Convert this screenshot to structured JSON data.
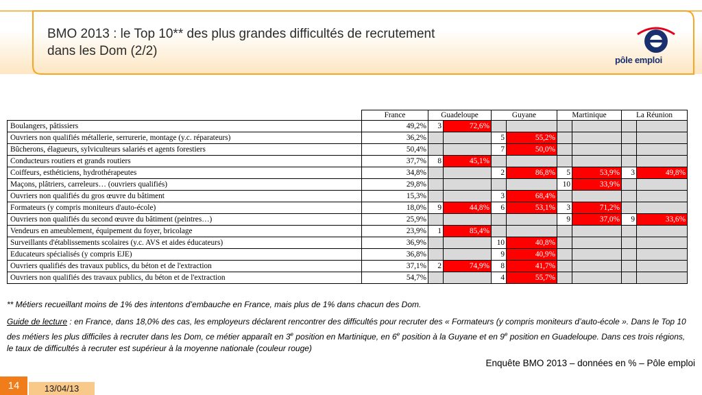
{
  "header": {
    "title_line1": "BMO 2013 : le Top 10** des plus grandes difficultés de recrutement",
    "title_line2": "dans les Dom (2/2)",
    "logo_text": "pôle emploi"
  },
  "table": {
    "columns": [
      "France",
      "Guadeloupe",
      "Guyane",
      "Martinique",
      "La Réunion"
    ],
    "rows": [
      {
        "label": "Boulangers, pâtissiers",
        "france": "49,2%",
        "cells": [
          {
            "rank": "3",
            "value": "72,6%"
          },
          {
            "rank": "",
            "value": ""
          },
          {
            "rank": "",
            "value": ""
          },
          {
            "rank": "",
            "value": ""
          }
        ]
      },
      {
        "label": "Ouvriers non qualifiés métallerie, serrurerie, montage (y.c. réparateurs)",
        "france": "36,2%",
        "cells": [
          {
            "rank": "",
            "value": ""
          },
          {
            "rank": "5",
            "value": "55,2%"
          },
          {
            "rank": "",
            "value": ""
          },
          {
            "rank": "",
            "value": ""
          }
        ]
      },
      {
        "label": "Bûcherons, élagueurs, sylviculteurs salariés et agents forestiers",
        "france": "50,4%",
        "cells": [
          {
            "rank": "",
            "value": ""
          },
          {
            "rank": "7",
            "value": "50,0%"
          },
          {
            "rank": "",
            "value": ""
          },
          {
            "rank": "",
            "value": ""
          }
        ]
      },
      {
        "label": "Conducteurs routiers et grands routiers",
        "france": "37,7%",
        "cells": [
          {
            "rank": "8",
            "value": "45,1%"
          },
          {
            "rank": "",
            "value": ""
          },
          {
            "rank": "",
            "value": ""
          },
          {
            "rank": "",
            "value": ""
          }
        ]
      },
      {
        "label": "Coiffeurs, esthéticiens, hydrothérapeutes",
        "france": "34,8%",
        "cells": [
          {
            "rank": "",
            "value": ""
          },
          {
            "rank": "2",
            "value": "86,8%"
          },
          {
            "rank": "5",
            "value": "53,9%"
          },
          {
            "rank": "3",
            "value": "49,8%"
          }
        ]
      },
      {
        "label": "Maçons, plâtriers, carreleurs… (ouvriers qualifiés)",
        "france": "29,8%",
        "cells": [
          {
            "rank": "",
            "value": ""
          },
          {
            "rank": "",
            "value": ""
          },
          {
            "rank": "10",
            "value": "33,9%"
          },
          {
            "rank": "",
            "value": ""
          }
        ]
      },
      {
        "label": "Ouvriers non qualifiés du gros œuvre du bâtiment",
        "france": "15,3%",
        "cells": [
          {
            "rank": "",
            "value": ""
          },
          {
            "rank": "3",
            "value": "68,4%"
          },
          {
            "rank": "",
            "value": ""
          },
          {
            "rank": "",
            "value": ""
          }
        ]
      },
      {
        "label": "Formateurs (y compris moniteurs d'auto-école)",
        "france": "18,0%",
        "cells": [
          {
            "rank": "9",
            "value": "44,8%"
          },
          {
            "rank": "6",
            "value": "53,1%"
          },
          {
            "rank": "3",
            "value": "71,2%"
          },
          {
            "rank": "",
            "value": ""
          }
        ]
      },
      {
        "label": "Ouvriers non qualifiés du second œuvre du bâtiment (peintres…)",
        "france": "25,9%",
        "cells": [
          {
            "rank": "",
            "value": ""
          },
          {
            "rank": "",
            "value": ""
          },
          {
            "rank": "9",
            "value": "37,0%"
          },
          {
            "rank": "9",
            "value": "33,6%"
          }
        ]
      },
      {
        "label": "Vendeurs en ameublement, équipement du foyer, bricolage",
        "france": "23,9%",
        "cells": [
          {
            "rank": "1",
            "value": "85,4%"
          },
          {
            "rank": "",
            "value": ""
          },
          {
            "rank": "",
            "value": ""
          },
          {
            "rank": "",
            "value": ""
          }
        ]
      },
      {
        "label": "Surveillants d'établissements scolaires (y.c. AVS et aides éducateurs)",
        "france": "36,9%",
        "cells": [
          {
            "rank": "",
            "value": ""
          },
          {
            "rank": "10",
            "value": "40,8%"
          },
          {
            "rank": "",
            "value": ""
          },
          {
            "rank": "",
            "value": ""
          }
        ]
      },
      {
        "label": "Educateurs spécialisés (y compris EJE)",
        "france": "36,8%",
        "cells": [
          {
            "rank": "",
            "value": ""
          },
          {
            "rank": "9",
            "value": "40,9%"
          },
          {
            "rank": "",
            "value": ""
          },
          {
            "rank": "",
            "value": ""
          }
        ]
      },
      {
        "label": "Ouvriers qualifiés des travaux publics, du béton et de l'extraction",
        "france": "37,1%",
        "cells": [
          {
            "rank": "2",
            "value": "74,9%"
          },
          {
            "rank": "8",
            "value": "41,7%"
          },
          {
            "rank": "",
            "value": ""
          },
          {
            "rank": "",
            "value": ""
          }
        ]
      },
      {
        "label": "Ouvriers non qualifiés des travaux publics, du béton et de l'extraction",
        "france": "54,7%",
        "cells": [
          {
            "rank": "",
            "value": ""
          },
          {
            "rank": "4",
            "value": "55,7%"
          },
          {
            "rank": "",
            "value": ""
          },
          {
            "rank": "",
            "value": ""
          }
        ]
      }
    ]
  },
  "footnote": "** Métiers recueillant moins de 1% des intentons d’embauche en France, mais plus de 1% dans chacun des Dom.",
  "guide": {
    "label": "Guide de lecture",
    "text_part1": " : en France, dans 18,0% des cas, les employeurs déclarent rencontrer des difficultés pour recruter des « Formateurs (y compris moniteurs d’auto-école ». Dans le Top 10 des métiers les plus difficiles à recruter dans les Dom, ce métier apparaît en 3",
    "sup1": "e",
    "text_part2": " position en Martinique, en 6",
    "sup2": "e",
    "text_part3": " position à la Guyane et en 9",
    "sup3": "e",
    "text_part4": " position en Guadeloupe. Dans ces trois régions, le taux de difficultés à recruter est supérieur à la moyenne nationale (couleur rouge)"
  },
  "source": "Enquête BMO 2013 – données en % – Pôle emploi",
  "footer": {
    "slide_number": "14",
    "date": "13/04/13"
  },
  "colors": {
    "accent_orange": "#f07d1a",
    "highlight_red": "#ff0000",
    "cell_gray": "#d9d9d9",
    "logo_blue": "#1a2f6e"
  }
}
